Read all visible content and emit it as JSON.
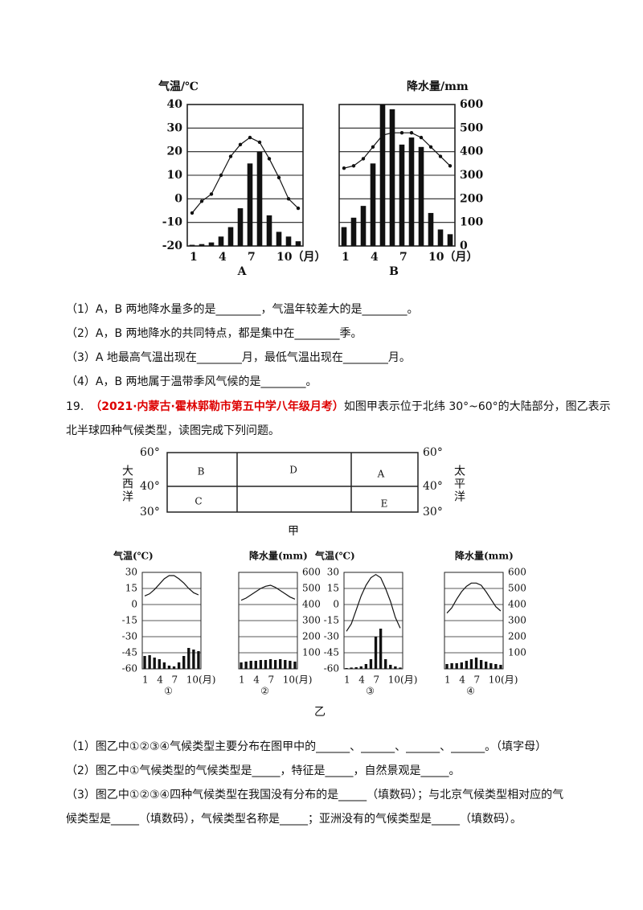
{
  "figure_top": {
    "temp_axis": {
      "title": "气温/℃",
      "ylim": [
        -20,
        40
      ],
      "yticks": [
        40,
        30,
        20,
        10,
        0,
        -10,
        -20
      ]
    },
    "precip_axis": {
      "title": "降水量/mm",
      "ylim": [
        0,
        600
      ],
      "yticks": [
        600,
        500,
        400,
        300,
        200,
        100,
        0
      ]
    },
    "xticks": [
      1,
      4,
      7,
      {
        "value": 10,
        "label": "10（月）"
      }
    ],
    "charts": [
      {
        "label": "A",
        "temperature": [
          -6,
          -1,
          2,
          10,
          18,
          23,
          26,
          24,
          17,
          9,
          0,
          -4
        ],
        "precipitation": [
          5,
          8,
          15,
          40,
          80,
          160,
          350,
          400,
          130,
          60,
          40,
          20
        ]
      },
      {
        "label": "B",
        "temperature": [
          13,
          14,
          17,
          22,
          27,
          28,
          28,
          28,
          26,
          22,
          18,
          14
        ],
        "precipitation": [
          80,
          120,
          170,
          350,
          600,
          580,
          430,
          460,
          420,
          140,
          70,
          50
        ]
      }
    ]
  },
  "questions_top": [
    "（1）A，B 两地降水量多的是________，气温年较差大的是________。",
    "（2）A，B 两地降水的共同特点，都是集中在________季。",
    "（3）A 地最高气温出现在________月，最低气温出现在________月。",
    "（4）A，B 两地属于温带季风气候的是________。"
  ],
  "q19": {
    "number": "19.",
    "source": "（2021·内蒙古·霍林郭勒市第五中学八年级月考）",
    "lines": [
      "如图甲表示位于北纬 30°~60°的大陆部分，图乙表示",
      "北半球四种气候类型，读图完成下列问题。"
    ]
  },
  "map": {
    "lat_labels": [
      "60°",
      "40°",
      "30°"
    ],
    "regions": [
      "B",
      "D",
      "A",
      "C",
      "E"
    ],
    "left_ocean": "大西洋",
    "right_ocean": "太平洋",
    "caption": "甲"
  },
  "figure_bottom": {
    "temp_axis": {
      "title": "气温(℃)",
      "ylim": [
        -60,
        30
      ],
      "yticks": [
        30,
        15,
        0,
        -15,
        -30,
        -45,
        -60
      ]
    },
    "precip_axis": {
      "title": "降水量(mm)",
      "ylim": [
        0,
        600
      ],
      "yticks": [
        600,
        500,
        400,
        300,
        200,
        100
      ]
    },
    "xticks": [
      1,
      4,
      7,
      {
        "value": 10,
        "label": "10(月)"
      }
    ],
    "charts": [
      {
        "label": "①",
        "temperature": [
          8,
          10,
          14,
          19,
          24,
          27,
          27,
          24,
          20,
          15,
          11,
          9
        ],
        "precipitation": [
          80,
          85,
          70,
          60,
          40,
          20,
          15,
          40,
          80,
          130,
          120,
          110
        ]
      },
      {
        "label": "②",
        "temperature": [
          4,
          6,
          9,
          12,
          15,
          17,
          18,
          16,
          13,
          10,
          7,
          5
        ],
        "precipitation": [
          40,
          45,
          50,
          50,
          55,
          55,
          60,
          55,
          60,
          55,
          50,
          45
        ]
      },
      {
        "label": "③",
        "temperature": [
          -25,
          -18,
          -5,
          8,
          18,
          25,
          28,
          25,
          15,
          3,
          -12,
          -22
        ],
        "precipitation": [
          5,
          8,
          10,
          15,
          30,
          60,
          200,
          250,
          60,
          25,
          15,
          8
        ]
      },
      {
        "label": "④",
        "temperature": [
          -8,
          -3,
          5,
          12,
          17,
          20,
          20,
          18,
          12,
          5,
          -2,
          -6
        ],
        "precipitation": [
          30,
          35,
          35,
          40,
          50,
          60,
          70,
          55,
          45,
          35,
          30,
          25
        ]
      }
    ],
    "caption": "乙"
  },
  "questions_bottom": [
    [
      "（1）图乙中①②③④气候类型主要分布在图甲中的______、______、______、______。（填字母）"
    ],
    [
      "（2）图乙中①气候类型的气候类型是_____，特征是_____，自然景观是_____。"
    ],
    [
      "（3）图乙中①②③④四种气候类型在我国没有分布的是_____（填数码）；与北京气候类型相对应的气",
      "候类型是_____（填数码），气候类型名称是_____；亚洲没有的气候类型是_____（填数码）。"
    ]
  ]
}
